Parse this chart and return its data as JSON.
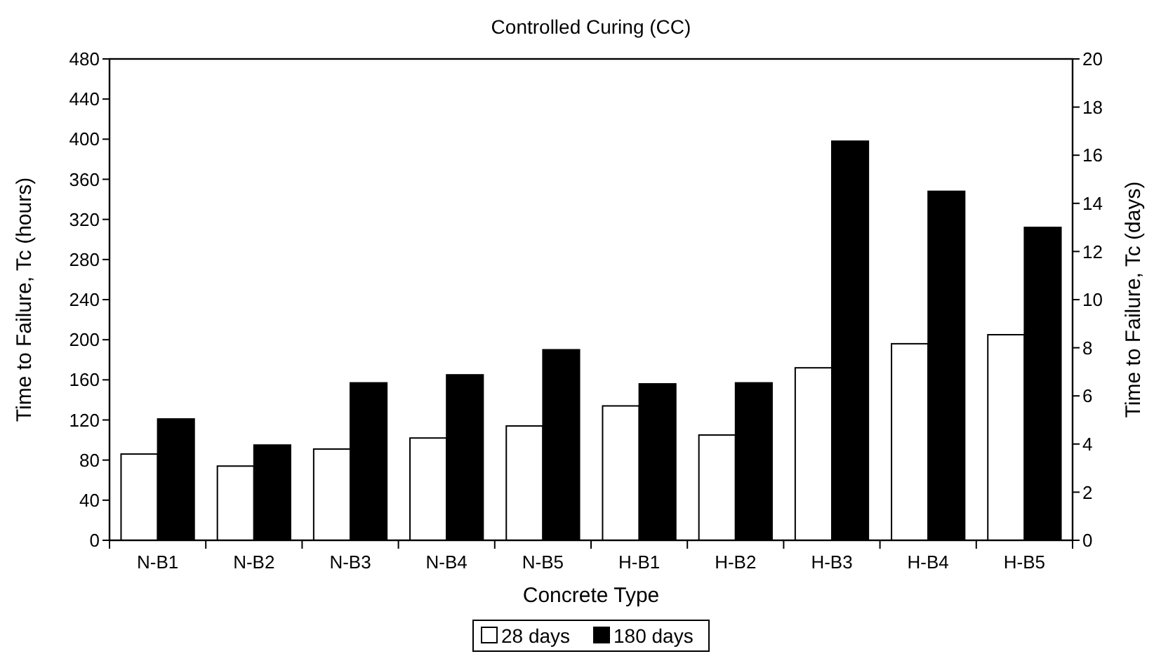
{
  "chart_data": {
    "type": "bar",
    "title": "Controlled Curing (CC)",
    "xlabel": "Concrete Type",
    "ylabel": "Time to Failure, Tc (hours)",
    "y2label": "Time to Failure, Tc (days)",
    "categories": [
      "N-B1",
      "N-B2",
      "N-B3",
      "N-B4",
      "N-B5",
      "H-B1",
      "H-B2",
      "H-B3",
      "H-B4",
      "H-B5"
    ],
    "series": [
      {
        "name": "28 days",
        "color": "#ffffff",
        "values": [
          86,
          74,
          91,
          102,
          114,
          134,
          105,
          172,
          196,
          205
        ]
      },
      {
        "name": "180 days",
        "color": "#000000",
        "values": [
          121,
          95,
          157,
          165,
          190,
          156,
          157,
          398,
          348,
          312
        ]
      }
    ],
    "ylim": [
      0,
      480
    ],
    "yticks": [
      0,
      40,
      80,
      120,
      160,
      200,
      240,
      280,
      320,
      360,
      400,
      440,
      480
    ],
    "y2lim": [
      0,
      20
    ],
    "y2ticks": [
      0,
      2,
      4,
      6,
      8,
      10,
      12,
      14,
      16,
      18,
      20
    ],
    "grid": false,
    "legend": "bottom"
  }
}
